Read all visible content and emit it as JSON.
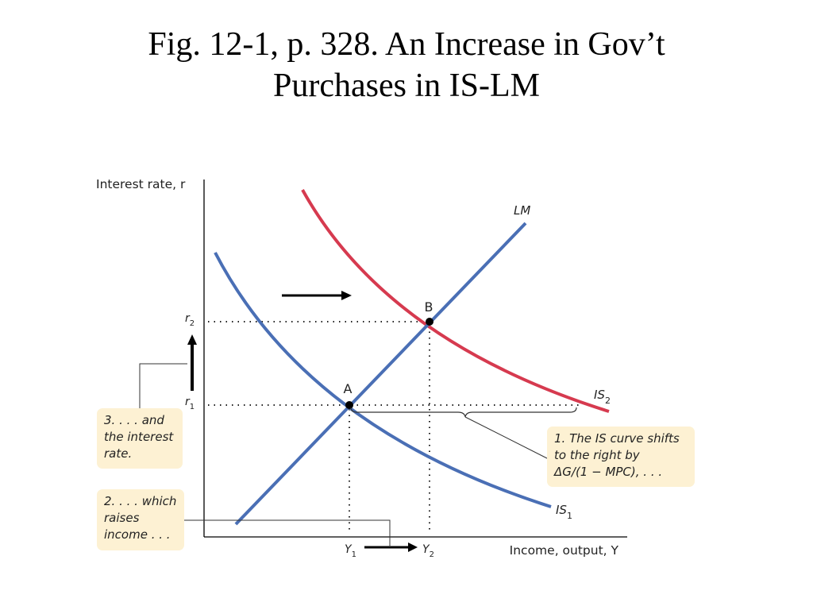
{
  "title_lines": [
    "Fig. 12-1, p. 328. An Increase in Gov’t",
    "Purchases in IS-LM"
  ],
  "colors": {
    "is_curves": "#4a6fb5",
    "lm_curve": "#4a6fb5",
    "is2_curve": "#d63a4f",
    "note_bg": "#fdf1d3",
    "axis": "#000000"
  },
  "chart_data": {
    "type": "line",
    "title": "Fig. 12-1, p. 328. An Increase in Gov’t Purchases in IS-LM",
    "xlabel": "Income, output, Y",
    "ylabel": "Interest rate, r",
    "grid": false,
    "series": [
      {
        "name": "LM",
        "label_main": "LM",
        "label_sub": "",
        "kind": "line",
        "color": "#4a6fb5"
      },
      {
        "name": "IS1",
        "label_main": "IS",
        "label_sub": "1",
        "kind": "convex",
        "color": "#4a6fb5"
      },
      {
        "name": "IS2",
        "label_main": "IS",
        "label_sub": "2",
        "kind": "convex",
        "color": "#d63a4f"
      }
    ],
    "points": [
      {
        "label": "A",
        "x_label": "Y",
        "x_sub": "1",
        "y_label": "r",
        "y_sub": "1"
      },
      {
        "label": "B",
        "x_label": "Y",
        "x_sub": "2",
        "y_label": "r",
        "y_sub": "2"
      }
    ],
    "annotations": [
      {
        "id": "note1",
        "lines": [
          "1. The IS curve shifts",
          "to the right by",
          "ΔG/(1 − MPC), . . ."
        ]
      },
      {
        "id": "note2",
        "lines": [
          "2. . . . which",
          "raises",
          "income . . ."
        ]
      },
      {
        "id": "note3",
        "lines": [
          "3. . . . and",
          "the interest",
          "rate."
        ]
      }
    ]
  }
}
